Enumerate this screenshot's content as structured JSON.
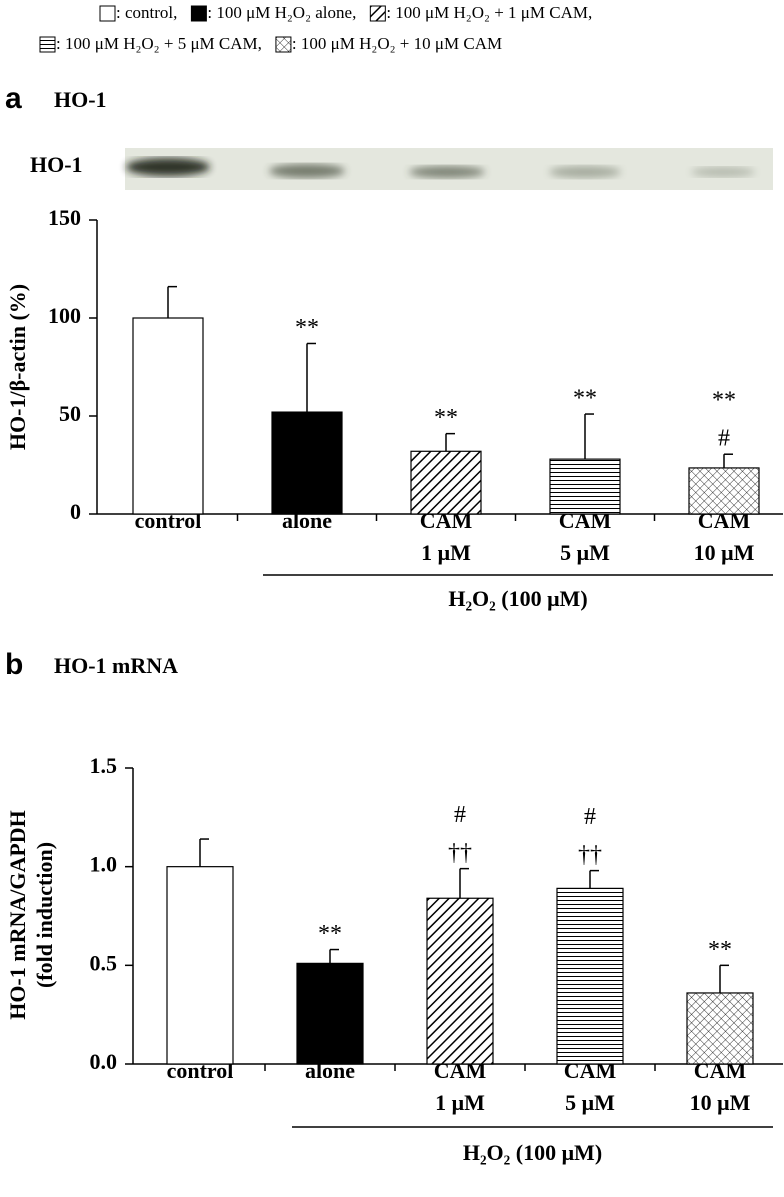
{
  "legend": [
    [
      {
        "label": ": control,",
        "pattern": "open"
      },
      {
        "label": ": 100 μM H₂O₂ alone,",
        "pattern": "solid"
      },
      {
        "label": ": 100 μM H₂O₂ + 1 μM CAM,",
        "pattern": "diagonal"
      }
    ],
    [
      {
        "label": ": 100 μM H₂O₂ + 5 μM CAM,",
        "pattern": "horizontal"
      },
      {
        "label": ": 100 μM H₂O₂ + 10 μM CAM",
        "pattern": "crosshatch"
      }
    ]
  ],
  "chart_data": [
    {
      "type": "bar",
      "panel": "a",
      "title": "HO-1",
      "blot_label": "HO-1",
      "ylabel": [
        "HO-1/β-actin (%)"
      ],
      "categories": [
        [
          "control"
        ],
        [
          "alone"
        ],
        [
          "CAM",
          "1 μM"
        ],
        [
          "CAM",
          "5 μM"
        ],
        [
          "CAM",
          "10 μM"
        ]
      ],
      "values": [
        100,
        52,
        32,
        28,
        23.5
      ],
      "errors": [
        16,
        35,
        9,
        23,
        7
      ],
      "patterns": [
        "open",
        "solid",
        "diagonal",
        "horizontal",
        "crosshatch"
      ],
      "annotations": [
        [],
        [
          "**"
        ],
        [
          "**"
        ],
        [
          "**"
        ],
        [
          "**",
          "#"
        ]
      ],
      "group_label": "H₂O₂ (100 μM)",
      "ylim": [
        0,
        150
      ],
      "yticks": [
        0,
        50,
        100,
        150
      ]
    },
    {
      "type": "bar",
      "panel": "b",
      "title": "HO-1 mRNA",
      "ylabel": [
        "HO-1 mRNA/GAPDH",
        "(fold induction)"
      ],
      "categories": [
        [
          "control"
        ],
        [
          "alone"
        ],
        [
          "CAM",
          "1 μM"
        ],
        [
          "CAM",
          "5 μM"
        ],
        [
          "CAM",
          "10 μM"
        ]
      ],
      "values": [
        1.0,
        0.51,
        0.84,
        0.89,
        0.36
      ],
      "errors": [
        0.14,
        0.07,
        0.15,
        0.09,
        0.14
      ],
      "patterns": [
        "open",
        "solid",
        "diagonal",
        "horizontal",
        "crosshatch"
      ],
      "annotations": [
        [],
        [
          "**"
        ],
        [
          "#",
          "††"
        ],
        [
          "#",
          "††"
        ],
        [
          "**"
        ]
      ],
      "group_label": "H₂O₂ (100 μM)",
      "ylim": [
        0,
        1.5
      ],
      "yticks": [
        {
          "value": 0,
          "label": "0.0"
        },
        0.5,
        {
          "value": 1,
          "label": "1.0"
        },
        1.5
      ]
    }
  ]
}
